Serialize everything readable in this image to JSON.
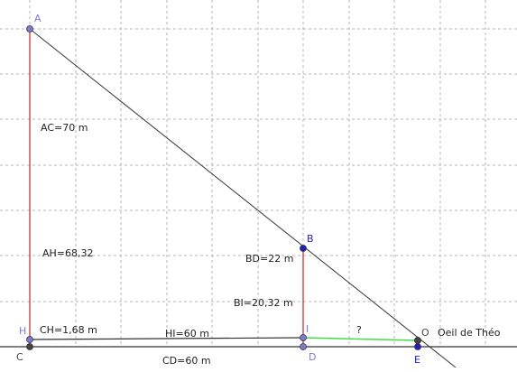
{
  "points": {
    "A": {
      "label": "A",
      "color": "#7b7bd6"
    },
    "B": {
      "label": "B",
      "color": "#2020c0"
    },
    "H": {
      "label": "H",
      "color": "#7b7bd6"
    },
    "C": {
      "label": "C",
      "color": "#444444"
    },
    "I": {
      "label": "I",
      "color": "#7b7bd6"
    },
    "D": {
      "label": "D",
      "color": "#7b7bd6"
    },
    "O": {
      "label": "O",
      "color": "#444444"
    },
    "E": {
      "label": "E",
      "color": "#2020c0"
    }
  },
  "labels": {
    "ac": "AC=70 m",
    "ah": "AH=68,32",
    "ch": "CH=1,68 m",
    "hi": "HI=60 m",
    "cd": "CD=60 m",
    "bd": "BD=22 m",
    "bi": "BI=20,32 m",
    "unknown": "?",
    "eye": "Oeil de Théo"
  },
  "colors": {
    "grid": "#b5b5b5",
    "axis": "#000000",
    "red": "#cc2222",
    "green": "#44dd44",
    "line": "#333333"
  }
}
